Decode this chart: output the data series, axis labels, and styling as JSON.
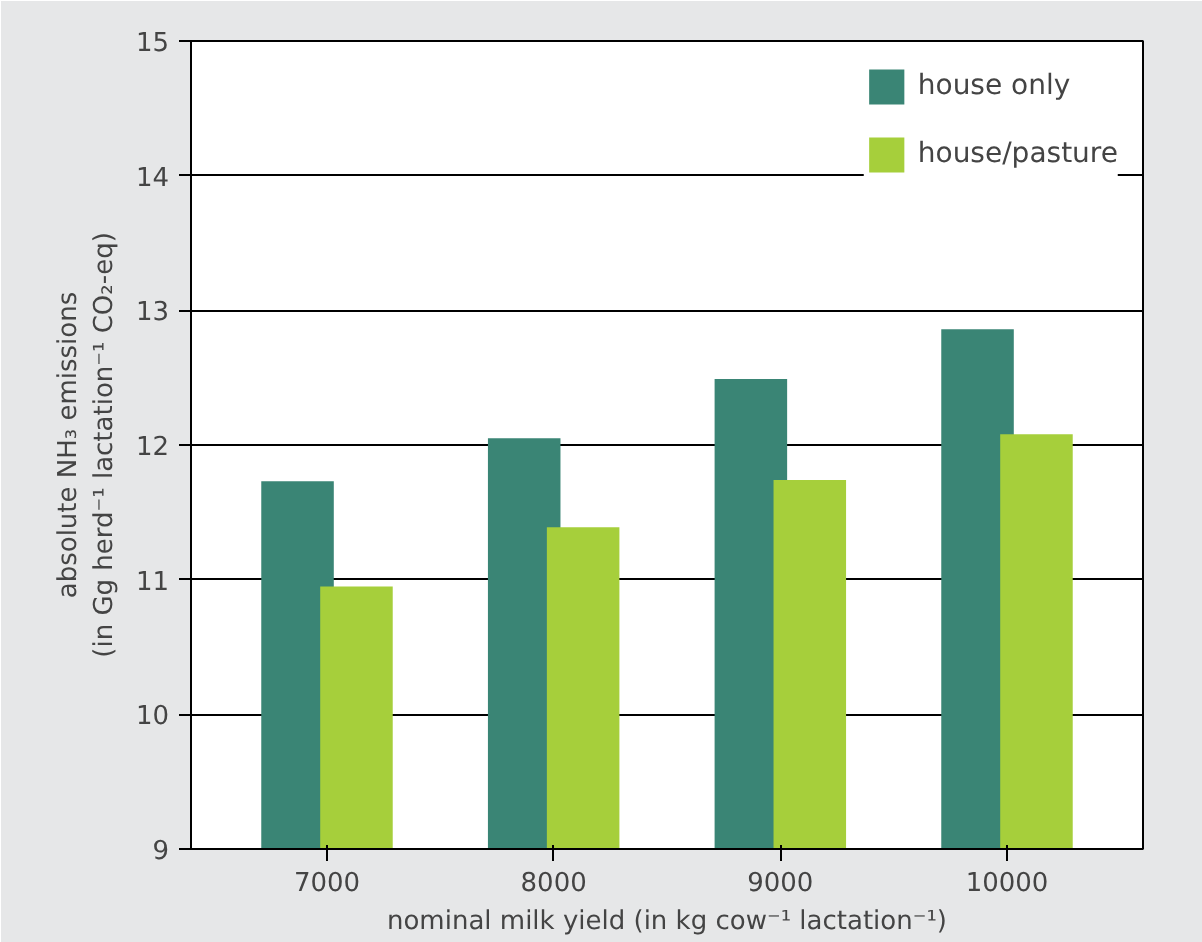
{
  "chart_data": {
    "type": "bar",
    "xlabel": "nominal milk yield (in kg cow⁻¹ lactation⁻¹)",
    "ylabel": "absolute NH₃ emissions\n(in Gg herd⁻¹ lactation⁻¹ CO₂-eq)",
    "categories": [
      "7000",
      "8000",
      "9000",
      "10000"
    ],
    "series": [
      {
        "name": "house only",
        "color": "#3a8575",
        "values": [
          11.73,
          12.05,
          12.49,
          12.86
        ]
      },
      {
        "name": "house/pasture",
        "color": "#a6cf3b",
        "values": [
          10.95,
          11.39,
          11.74,
          12.08
        ]
      }
    ],
    "ylim": [
      9,
      15
    ],
    "yticks": [
      9,
      10,
      11,
      12,
      13,
      14,
      15
    ],
    "grid": "y",
    "legend": "top right"
  }
}
